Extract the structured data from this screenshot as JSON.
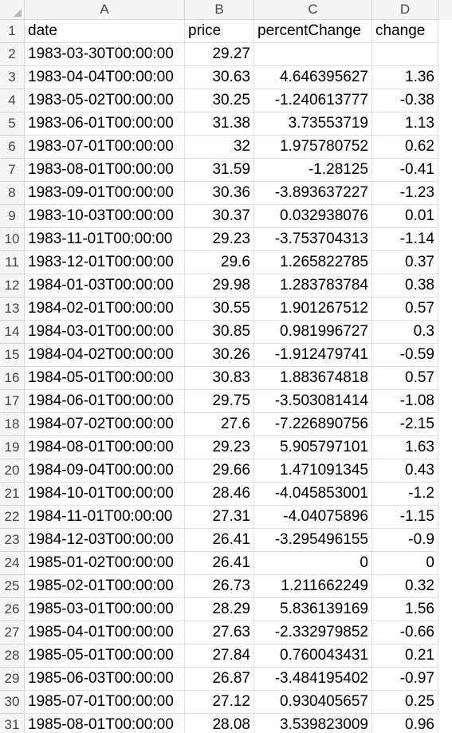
{
  "columns": [
    "A",
    "B",
    "C",
    "D"
  ],
  "rows": [
    {
      "n": "1",
      "a": "date",
      "b": "price",
      "c": "percentChange",
      "d": "change"
    },
    {
      "n": "2",
      "a": "1983-03-30T00:00:00",
      "b": "29.27",
      "c": "",
      "d": ""
    },
    {
      "n": "3",
      "a": "1983-04-04T00:00:00",
      "b": "30.63",
      "c": "4.646395627",
      "d": "1.36"
    },
    {
      "n": "4",
      "a": "1983-05-02T00:00:00",
      "b": "30.25",
      "c": "-1.240613777",
      "d": "-0.38"
    },
    {
      "n": "5",
      "a": "1983-06-01T00:00:00",
      "b": "31.38",
      "c": "3.73553719",
      "d": "1.13"
    },
    {
      "n": "6",
      "a": "1983-07-01T00:00:00",
      "b": "32",
      "c": "1.975780752",
      "d": "0.62"
    },
    {
      "n": "7",
      "a": "1983-08-01T00:00:00",
      "b": "31.59",
      "c": "-1.28125",
      "d": "-0.41"
    },
    {
      "n": "8",
      "a": "1983-09-01T00:00:00",
      "b": "30.36",
      "c": "-3.893637227",
      "d": "-1.23"
    },
    {
      "n": "9",
      "a": "1983-10-03T00:00:00",
      "b": "30.37",
      "c": "0.032938076",
      "d": "0.01"
    },
    {
      "n": "10",
      "a": "1983-11-01T00:00:00",
      "b": "29.23",
      "c": "-3.753704313",
      "d": "-1.14"
    },
    {
      "n": "11",
      "a": "1983-12-01T00:00:00",
      "b": "29.6",
      "c": "1.265822785",
      "d": "0.37"
    },
    {
      "n": "12",
      "a": "1984-01-03T00:00:00",
      "b": "29.98",
      "c": "1.283783784",
      "d": "0.38"
    },
    {
      "n": "13",
      "a": "1984-02-01T00:00:00",
      "b": "30.55",
      "c": "1.901267512",
      "d": "0.57"
    },
    {
      "n": "14",
      "a": "1984-03-01T00:00:00",
      "b": "30.85",
      "c": "0.981996727",
      "d": "0.3"
    },
    {
      "n": "15",
      "a": "1984-04-02T00:00:00",
      "b": "30.26",
      "c": "-1.912479741",
      "d": "-0.59"
    },
    {
      "n": "16",
      "a": "1984-05-01T00:00:00",
      "b": "30.83",
      "c": "1.883674818",
      "d": "0.57"
    },
    {
      "n": "17",
      "a": "1984-06-01T00:00:00",
      "b": "29.75",
      "c": "-3.503081414",
      "d": "-1.08"
    },
    {
      "n": "18",
      "a": "1984-07-02T00:00:00",
      "b": "27.6",
      "c": "-7.226890756",
      "d": "-2.15"
    },
    {
      "n": "19",
      "a": "1984-08-01T00:00:00",
      "b": "29.23",
      "c": "5.905797101",
      "d": "1.63"
    },
    {
      "n": "20",
      "a": "1984-09-04T00:00:00",
      "b": "29.66",
      "c": "1.471091345",
      "d": "0.43"
    },
    {
      "n": "21",
      "a": "1984-10-01T00:00:00",
      "b": "28.46",
      "c": "-4.045853001",
      "d": "-1.2"
    },
    {
      "n": "22",
      "a": "1984-11-01T00:00:00",
      "b": "27.31",
      "c": "-4.04075896",
      "d": "-1.15"
    },
    {
      "n": "23",
      "a": "1984-12-03T00:00:00",
      "b": "26.41",
      "c": "-3.295496155",
      "d": "-0.9"
    },
    {
      "n": "24",
      "a": "1985-01-02T00:00:00",
      "b": "26.41",
      "c": "0",
      "d": "0"
    },
    {
      "n": "25",
      "a": "1985-02-01T00:00:00",
      "b": "26.73",
      "c": "1.211662249",
      "d": "0.32"
    },
    {
      "n": "26",
      "a": "1985-03-01T00:00:00",
      "b": "28.29",
      "c": "5.836139169",
      "d": "1.56"
    },
    {
      "n": "27",
      "a": "1985-04-01T00:00:00",
      "b": "27.63",
      "c": "-2.332979852",
      "d": "-0.66"
    },
    {
      "n": "28",
      "a": "1985-05-01T00:00:00",
      "b": "27.84",
      "c": "0.760043431",
      "d": "0.21"
    },
    {
      "n": "29",
      "a": "1985-06-03T00:00:00",
      "b": "26.87",
      "c": "-3.484195402",
      "d": "-0.97"
    },
    {
      "n": "30",
      "a": "1985-07-01T00:00:00",
      "b": "27.12",
      "c": "0.930405657",
      "d": "0.25"
    },
    {
      "n": "31",
      "a": "1985-08-01T00:00:00",
      "b": "28.08",
      "c": "3.539823009",
      "d": "0.96"
    }
  ]
}
